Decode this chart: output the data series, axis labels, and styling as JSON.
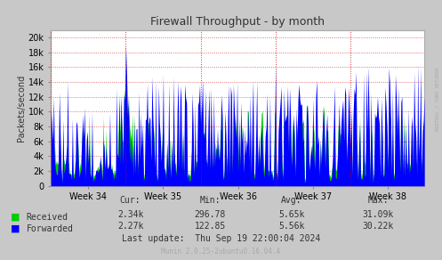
{
  "title": "Firewall Throughput - by month",
  "ylabel": "Packets/second",
  "right_label": "RRDTOOL / TOBI OETIKER",
  "footer": "Munin 2.0.25-2ubuntu0.16.04.4",
  "last_update": "Last update:  Thu Sep 19 22:00:04 2024",
  "x_tick_labels": [
    "Week 34",
    "Week 35",
    "Week 36",
    "Week 37",
    "Week 38"
  ],
  "ylim": [
    0,
    21000
  ],
  "yticks": [
    0,
    2000,
    4000,
    6000,
    8000,
    10000,
    12000,
    14000,
    16000,
    18000,
    20000
  ],
  "stats": {
    "headers": [
      "Cur:",
      "Min:",
      "Avg:",
      "Max:"
    ],
    "received": {
      "cur": "2.34k",
      "min": "296.78",
      "avg": "5.65k",
      "max": "31.09k"
    },
    "forwarded": {
      "cur": "2.27k",
      "min": "122.85",
      "avg": "5.56k",
      "max": "30.22k"
    }
  },
  "grid_color": "#ff4444",
  "grid_alpha": 0.5,
  "received_color": "#00cc00",
  "forwarded_color": "#0000ff",
  "bg_color": "#c8c8c8",
  "plot_bg_color": "#ffffff",
  "num_points": 400
}
